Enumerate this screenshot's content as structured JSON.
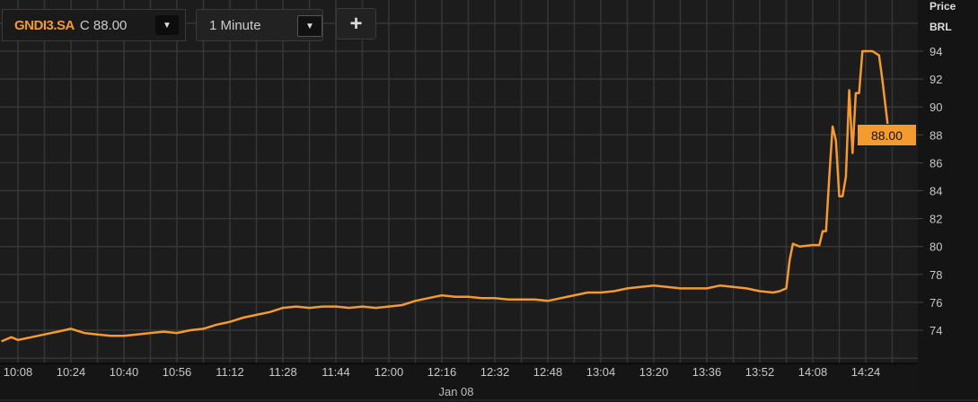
{
  "toolbar": {
    "ticker": "GNDI3.SA",
    "last_label": "C 88.00",
    "interval": "1 Minute",
    "add_label": "+",
    "dropdown_icon": "triangle-down-icon"
  },
  "chart_data": {
    "type": "line",
    "y_axis_title": [
      "Price",
      "BRL"
    ],
    "ylim": [
      72,
      96
    ],
    "y_ticks": [
      74,
      76,
      78,
      80,
      82,
      84,
      86,
      88,
      90,
      92,
      94
    ],
    "x_ticks": [
      "10:08",
      "10:24",
      "10:40",
      "10:56",
      "11:12",
      "11:28",
      "11:44",
      "12:00",
      "12:16",
      "12:32",
      "12:48",
      "13:04",
      "13:20",
      "13:36",
      "13:52",
      "14:08",
      "14:24"
    ],
    "x_date_label": "Jan 08",
    "current_value_label": "88.00",
    "grid": true,
    "colors": {
      "line": "#f39a30",
      "background": "#1c1c1c",
      "grid": "#363636"
    },
    "series": [
      {
        "x": [
          "10:03",
          "10:06",
          "10:08",
          "10:12",
          "10:16",
          "10:20",
          "10:24",
          "10:28",
          "10:32",
          "10:36",
          "10:40",
          "10:44",
          "10:48",
          "10:52",
          "10:56",
          "11:00",
          "11:04",
          "11:08",
          "11:12",
          "11:16",
          "11:20",
          "11:24",
          "11:28",
          "11:32",
          "11:36",
          "11:40",
          "11:44",
          "11:48",
          "11:52",
          "11:56",
          "12:00",
          "12:04",
          "12:08",
          "12:12",
          "12:16",
          "12:20",
          "12:24",
          "12:28",
          "12:32",
          "12:36",
          "12:40",
          "12:44",
          "12:48",
          "12:52",
          "12:56",
          "13:00",
          "13:04",
          "13:08",
          "13:12",
          "13:16",
          "13:20",
          "13:24",
          "13:28",
          "13:32",
          "13:36",
          "13:40",
          "13:44",
          "13:48",
          "13:52",
          "13:56",
          "13:58",
          "14:00",
          "14:01",
          "14:02",
          "14:04",
          "14:08",
          "14:10",
          "14:11",
          "14:12",
          "14:13",
          "14:14",
          "14:15",
          "14:16",
          "14:17",
          "14:18",
          "14:19",
          "14:20",
          "14:21",
          "14:22",
          "14:23",
          "14:26",
          "14:28",
          "14:29",
          "14:31"
        ],
        "y": [
          73.2,
          73.5,
          73.3,
          73.5,
          73.7,
          73.9,
          74.1,
          73.8,
          73.7,
          73.6,
          73.6,
          73.7,
          73.8,
          73.9,
          73.8,
          74.0,
          74.1,
          74.4,
          74.6,
          74.9,
          75.1,
          75.3,
          75.6,
          75.7,
          75.6,
          75.7,
          75.7,
          75.6,
          75.7,
          75.6,
          75.7,
          75.8,
          76.1,
          76.3,
          76.5,
          76.4,
          76.4,
          76.3,
          76.3,
          76.2,
          76.2,
          76.2,
          76.1,
          76.3,
          76.5,
          76.7,
          76.7,
          76.8,
          77.0,
          77.1,
          77.2,
          77.1,
          77.0,
          77.0,
          77.0,
          77.2,
          77.1,
          77.0,
          76.8,
          76.7,
          76.8,
          77.0,
          79.0,
          80.2,
          80.0,
          80.1,
          80.1,
          81.1,
          81.1,
          85.0,
          88.6,
          87.6,
          83.6,
          83.6,
          85.0,
          91.2,
          86.7,
          91.0,
          91.0,
          94.0,
          94.0,
          93.7,
          92.0,
          88.0
        ]
      }
    ]
  }
}
